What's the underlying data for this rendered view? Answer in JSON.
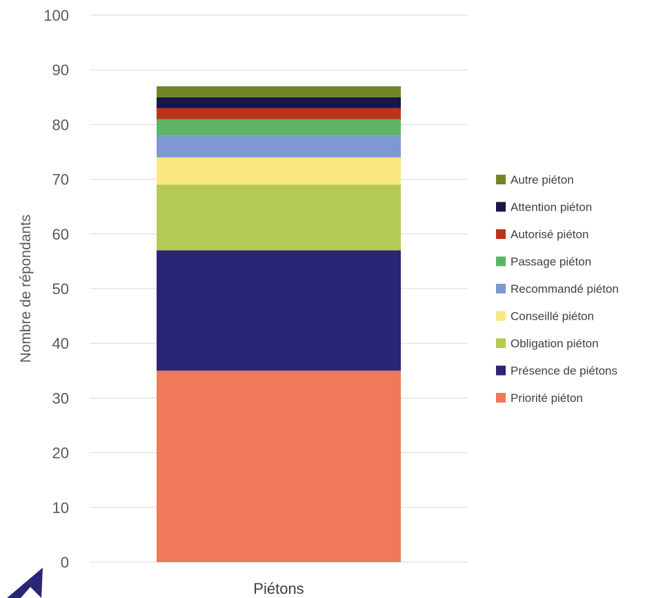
{
  "chart_data": {
    "type": "bar",
    "stacked": true,
    "categories": [
      "Piétons"
    ],
    "ylabel": "Nombre de répondants",
    "ylim": [
      0,
      100
    ],
    "yticks": [
      0,
      10,
      20,
      30,
      40,
      50,
      60,
      70,
      80,
      90,
      100
    ],
    "grid": true,
    "legend_position": "right",
    "series": [
      {
        "name": "Priorité piéton",
        "values": [
          35
        ],
        "color": "#EF7959"
      },
      {
        "name": "Présence de piétons",
        "values": [
          22
        ],
        "color": "#2B2575"
      },
      {
        "name": "Obligation piéton",
        "values": [
          12
        ],
        "color": "#B2CB52"
      },
      {
        "name": "Conseillé piéton",
        "values": [
          5
        ],
        "color": "#FCE883"
      },
      {
        "name": "Recommandé piéton",
        "values": [
          4
        ],
        "color": "#7E99D1"
      },
      {
        "name": "Passage piéton",
        "values": [
          3
        ],
        "color": "#5DB468"
      },
      {
        "name": "Autorisé piéton",
        "values": [
          2
        ],
        "color": "#BF3219"
      },
      {
        "name": "Attention piéton",
        "values": [
          2
        ],
        "color": "#171649"
      },
      {
        "name": "Autre piéton",
        "values": [
          2
        ],
        "color": "#6F8528"
      }
    ]
  },
  "decor": {
    "arrow_icon": "arrow-icon",
    "arrow_color": "#2B2575"
  }
}
